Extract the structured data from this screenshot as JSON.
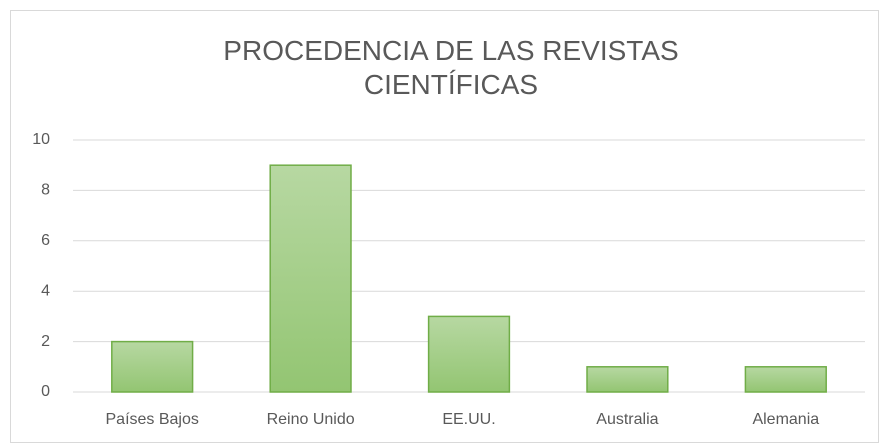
{
  "chart_data": {
    "type": "bar",
    "title": "PROCEDENCIA DE LAS REVISTAS CIENTÍFICAS",
    "categories": [
      "Países Bajos",
      "Reino Unido",
      "EE.UU.",
      "Australia",
      "Alemania"
    ],
    "values": [
      2,
      9,
      3,
      1,
      1
    ],
    "color": "#70ad47",
    "ylim": [
      0,
      10
    ],
    "yticks": [
      0,
      2,
      4,
      6,
      8,
      10
    ],
    "grid": true
  }
}
